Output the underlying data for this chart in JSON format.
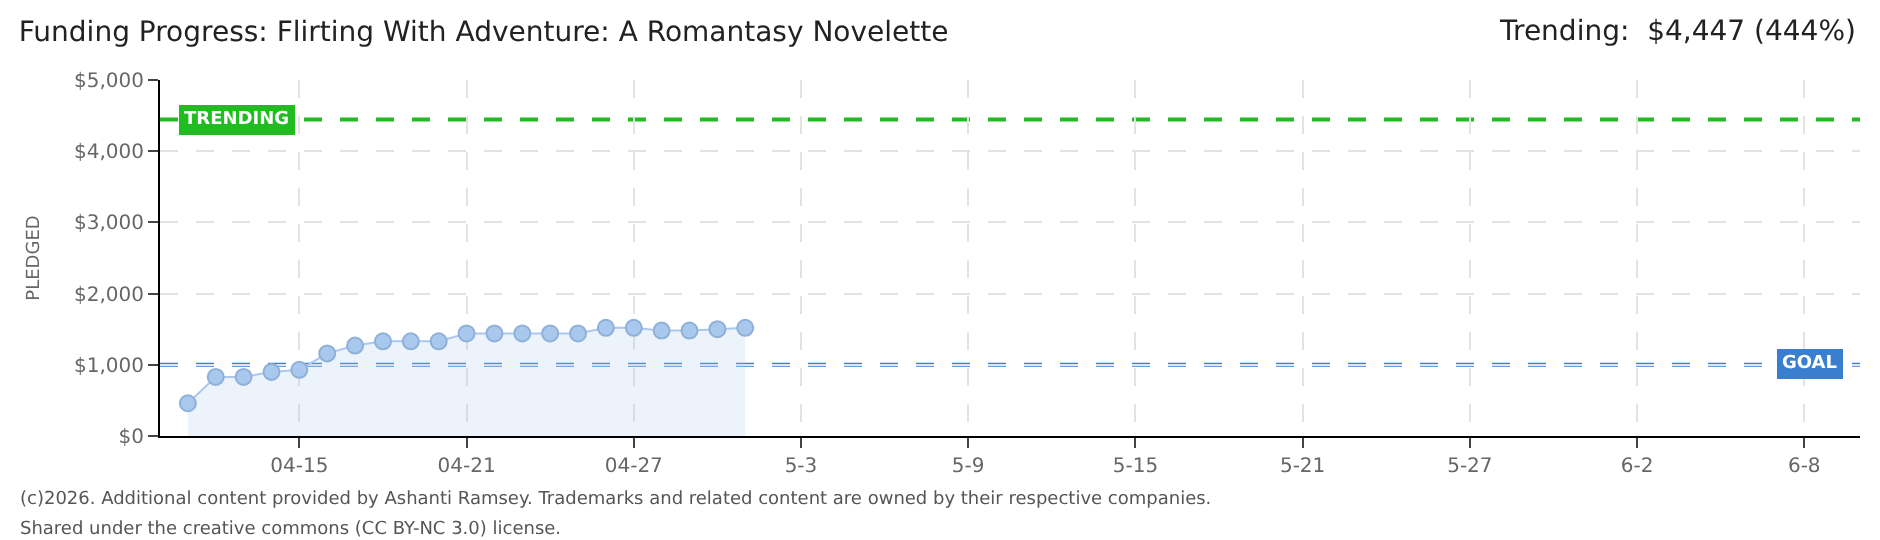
{
  "chart_data": {
    "type": "area",
    "title": "Funding Progress: Flirting With Adventure: A Romantasy Novelette",
    "ylabel": "PLEDGED",
    "annotations": [
      "Trending:  $4,447 (444%)",
      "(c)2026. Additional content provided by Ashanti Ramsey. Trademarks and related content are owned by their respective companies.",
      "Shared under the creative commons (CC BY-NC 3.0) license."
    ],
    "x": [
      "--04-11",
      "--04-12",
      "--04-13",
      "--04-14",
      "--04-15",
      "--04-16",
      "--04-17",
      "--04-18",
      "--04-19",
      "--04-20",
      "--04-21",
      "--04-22",
      "--04-23",
      "--04-24",
      "--04-25",
      "--04-26",
      "--04-27",
      "--04-28",
      "--04-29",
      "--04-30",
      "--05-01"
    ],
    "series": [
      {
        "color": "#a9c8ee",
        "values": [
          460,
          830,
          830,
          900,
          930,
          1160,
          1270,
          1330,
          1330,
          1330,
          1440,
          1440,
          1440,
          1440,
          1440,
          1520,
          1520,
          1480,
          1480,
          1500,
          1520
        ]
      }
    ],
    "xlim": [
      "--04-10",
      "--06-10"
    ],
    "xticks": [
      {
        "value": "--04-15",
        "label": "04-15"
      },
      {
        "value": "--04-21",
        "label": "04-21"
      },
      {
        "value": "--04-27",
        "label": "04-27"
      },
      {
        "value": "--05-03",
        "label": "5-3"
      },
      {
        "value": "--05-09",
        "label": "5-9"
      },
      {
        "value": "--05-15",
        "label": "5-15"
      },
      {
        "value": "--05-21",
        "label": "5-21"
      },
      {
        "value": "--05-27",
        "label": "5-27"
      },
      {
        "value": "--06-02",
        "label": "6-2"
      },
      {
        "value": "--06-08",
        "label": "6-8"
      }
    ],
    "ylim": [
      0,
      5000
    ],
    "yticks": [
      {
        "value": 0,
        "label": "$0"
      },
      {
        "value": 1000,
        "label": "$1,000"
      },
      {
        "value": 2000,
        "label": "$2,000"
      },
      {
        "value": 3000,
        "label": "$3,000"
      },
      {
        "value": 4000,
        "label": "$4,000"
      },
      {
        "value": 5000,
        "label": "$5,000"
      }
    ],
    "ref_lines": [
      {
        "axis": "y",
        "value": 4447,
        "label": "TRENDING",
        "color": "#22bb22",
        "line_style": "dashed"
      },
      {
        "axis": "y",
        "value": 1000,
        "label": "GOAL",
        "color": "#3a7fcf",
        "line_style": "dashed"
      }
    ],
    "grid": true,
    "marker": "circle"
  }
}
